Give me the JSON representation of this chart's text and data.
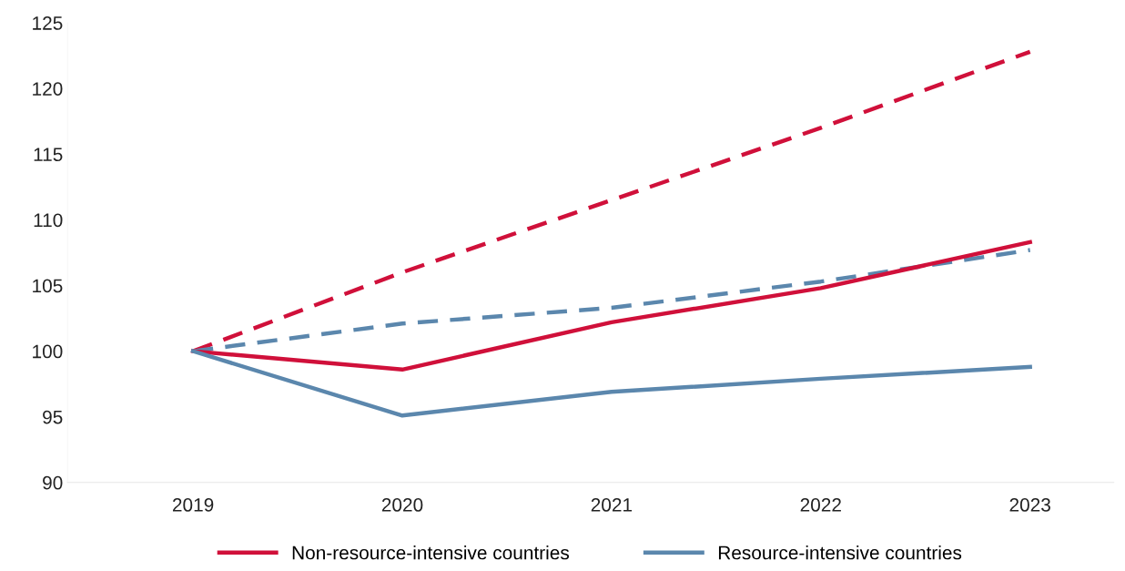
{
  "chart_data": {
    "type": "line",
    "categories": [
      "2019",
      "2020",
      "2021",
      "2022",
      "2023"
    ],
    "series": [
      {
        "color": "#d0103a",
        "line_style": "dashed",
        "values": [
          100,
          106,
          111.5,
          117,
          122.8
        ]
      },
      {
        "color": "#5b87ad",
        "line_style": "dashed",
        "values": [
          100,
          102.1,
          103.3,
          105.3,
          107.7
        ]
      },
      {
        "name": "Non-resource-intensive countries",
        "color": "#d0103a",
        "line_style": "solid",
        "values": [
          100,
          98.6,
          102.2,
          104.8,
          108.3
        ]
      },
      {
        "name": "Resource-intensive countries",
        "color": "#5b87ad",
        "line_style": "solid",
        "values": [
          100,
          95.1,
          96.9,
          97.9,
          98.8
        ]
      }
    ],
    "ylim": [
      90,
      125
    ],
    "yticks": [
      90,
      95,
      100,
      105,
      110,
      115,
      120,
      125
    ],
    "grid": false,
    "legend": "bottom",
    "marker": "none"
  }
}
